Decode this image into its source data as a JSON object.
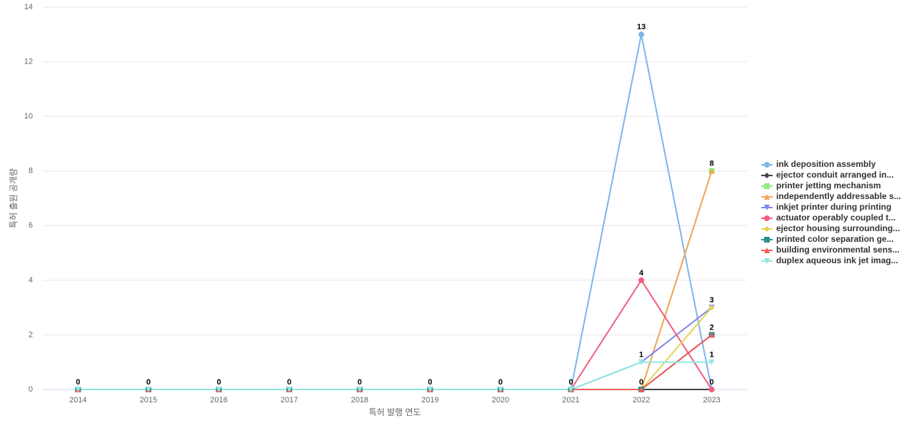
{
  "chart_data": {
    "type": "line",
    "x_label": "특허 발행 연도",
    "y_label": "특허 출원 공개량",
    "categories": [
      "2014",
      "2015",
      "2016",
      "2017",
      "2018",
      "2019",
      "2020",
      "2021",
      "2022",
      "2023"
    ],
    "ylim": [
      0,
      14
    ],
    "yticks": [
      0,
      2,
      4,
      6,
      8,
      10,
      12,
      14
    ],
    "grid": true,
    "series": [
      {
        "name": "ink deposition assembly",
        "color": "#7cb5ec",
        "values": [
          0,
          0,
          0,
          0,
          0,
          0,
          0,
          0,
          13,
          0
        ]
      },
      {
        "name": "ejector conduit arranged in...",
        "color": "#434348",
        "values": [
          0,
          0,
          0,
          0,
          0,
          0,
          0,
          0,
          0,
          0
        ]
      },
      {
        "name": "printer jetting mechanism",
        "color": "#90ed7d",
        "values": [
          0,
          0,
          0,
          0,
          0,
          0,
          0,
          0,
          0,
          8
        ]
      },
      {
        "name": "independently addressable s...",
        "color": "#f7a35c",
        "values": [
          0,
          0,
          0,
          0,
          0,
          0,
          0,
          0,
          0,
          8
        ]
      },
      {
        "name": "inkjet printer during printing",
        "color": "#8085e9",
        "values": [
          0,
          0,
          0,
          0,
          0,
          0,
          0,
          0,
          1,
          3
        ]
      },
      {
        "name": "actuator operably coupled t...",
        "color": "#f15c80",
        "values": [
          0,
          0,
          0,
          0,
          0,
          0,
          0,
          0,
          4,
          0
        ]
      },
      {
        "name": "ejector housing surrounding...",
        "color": "#e4d354",
        "values": [
          0,
          0,
          0,
          0,
          0,
          0,
          0,
          0,
          0,
          3
        ]
      },
      {
        "name": "printed color separation ge...",
        "color": "#2b908f",
        "values": [
          0,
          0,
          0,
          0,
          0,
          0,
          0,
          0,
          0,
          2
        ]
      },
      {
        "name": "building environmental sens...",
        "color": "#f45b5b",
        "values": [
          0,
          0,
          0,
          0,
          0,
          0,
          0,
          0,
          0,
          2
        ]
      },
      {
        "name": "duplex aqueous ink jet imag...",
        "color": "#91e8e1",
        "values": [
          0,
          0,
          0,
          0,
          0,
          0,
          0,
          0,
          1,
          1
        ]
      }
    ]
  }
}
